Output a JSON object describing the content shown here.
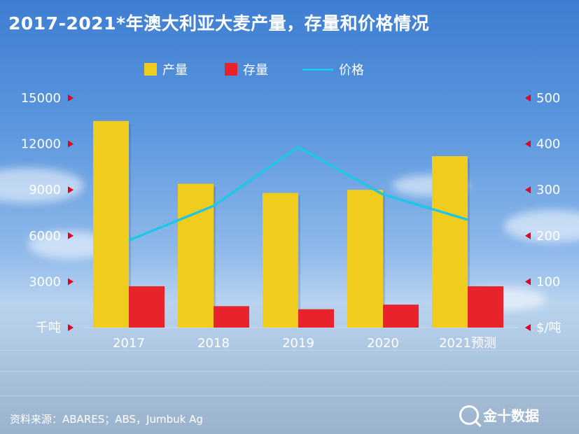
{
  "title": "2017-2021*年澳大利亚大麦产量，存量和价格情况",
  "source": "资料来源：ABARES；ABS，Jumbuk Ag",
  "brand": "金十数据",
  "colors": {
    "production": "#f0cc1e",
    "stock": "#e8232b",
    "price": "#1ec7e6",
    "marker": "#e3001b"
  },
  "chart_data": {
    "type": "bar",
    "categories": [
      "2017",
      "2018",
      "2019",
      "2020",
      "2021预测"
    ],
    "series": [
      {
        "name": "产量",
        "type": "bar",
        "axis": "left",
        "values": [
          13500,
          9400,
          8800,
          9000,
          11200
        ]
      },
      {
        "name": "存量",
        "type": "bar",
        "axis": "left",
        "values": [
          2700,
          1400,
          1200,
          1500,
          2700
        ]
      },
      {
        "name": "价格",
        "type": "line",
        "axis": "right",
        "values": [
          190,
          265,
          393,
          290,
          235
        ]
      }
    ],
    "left_axis": {
      "unit": "千吨",
      "ticks": [
        "3000",
        "6000",
        "9000",
        "12000",
        "15000"
      ],
      "range": [
        0,
        15000
      ]
    },
    "right_axis": {
      "unit": "$/吨",
      "ticks": [
        "100",
        "200",
        "300",
        "400",
        "500"
      ],
      "range": [
        0,
        500
      ]
    },
    "legend": [
      "产量",
      "存量",
      "价格"
    ],
    "legend_position": "top"
  }
}
